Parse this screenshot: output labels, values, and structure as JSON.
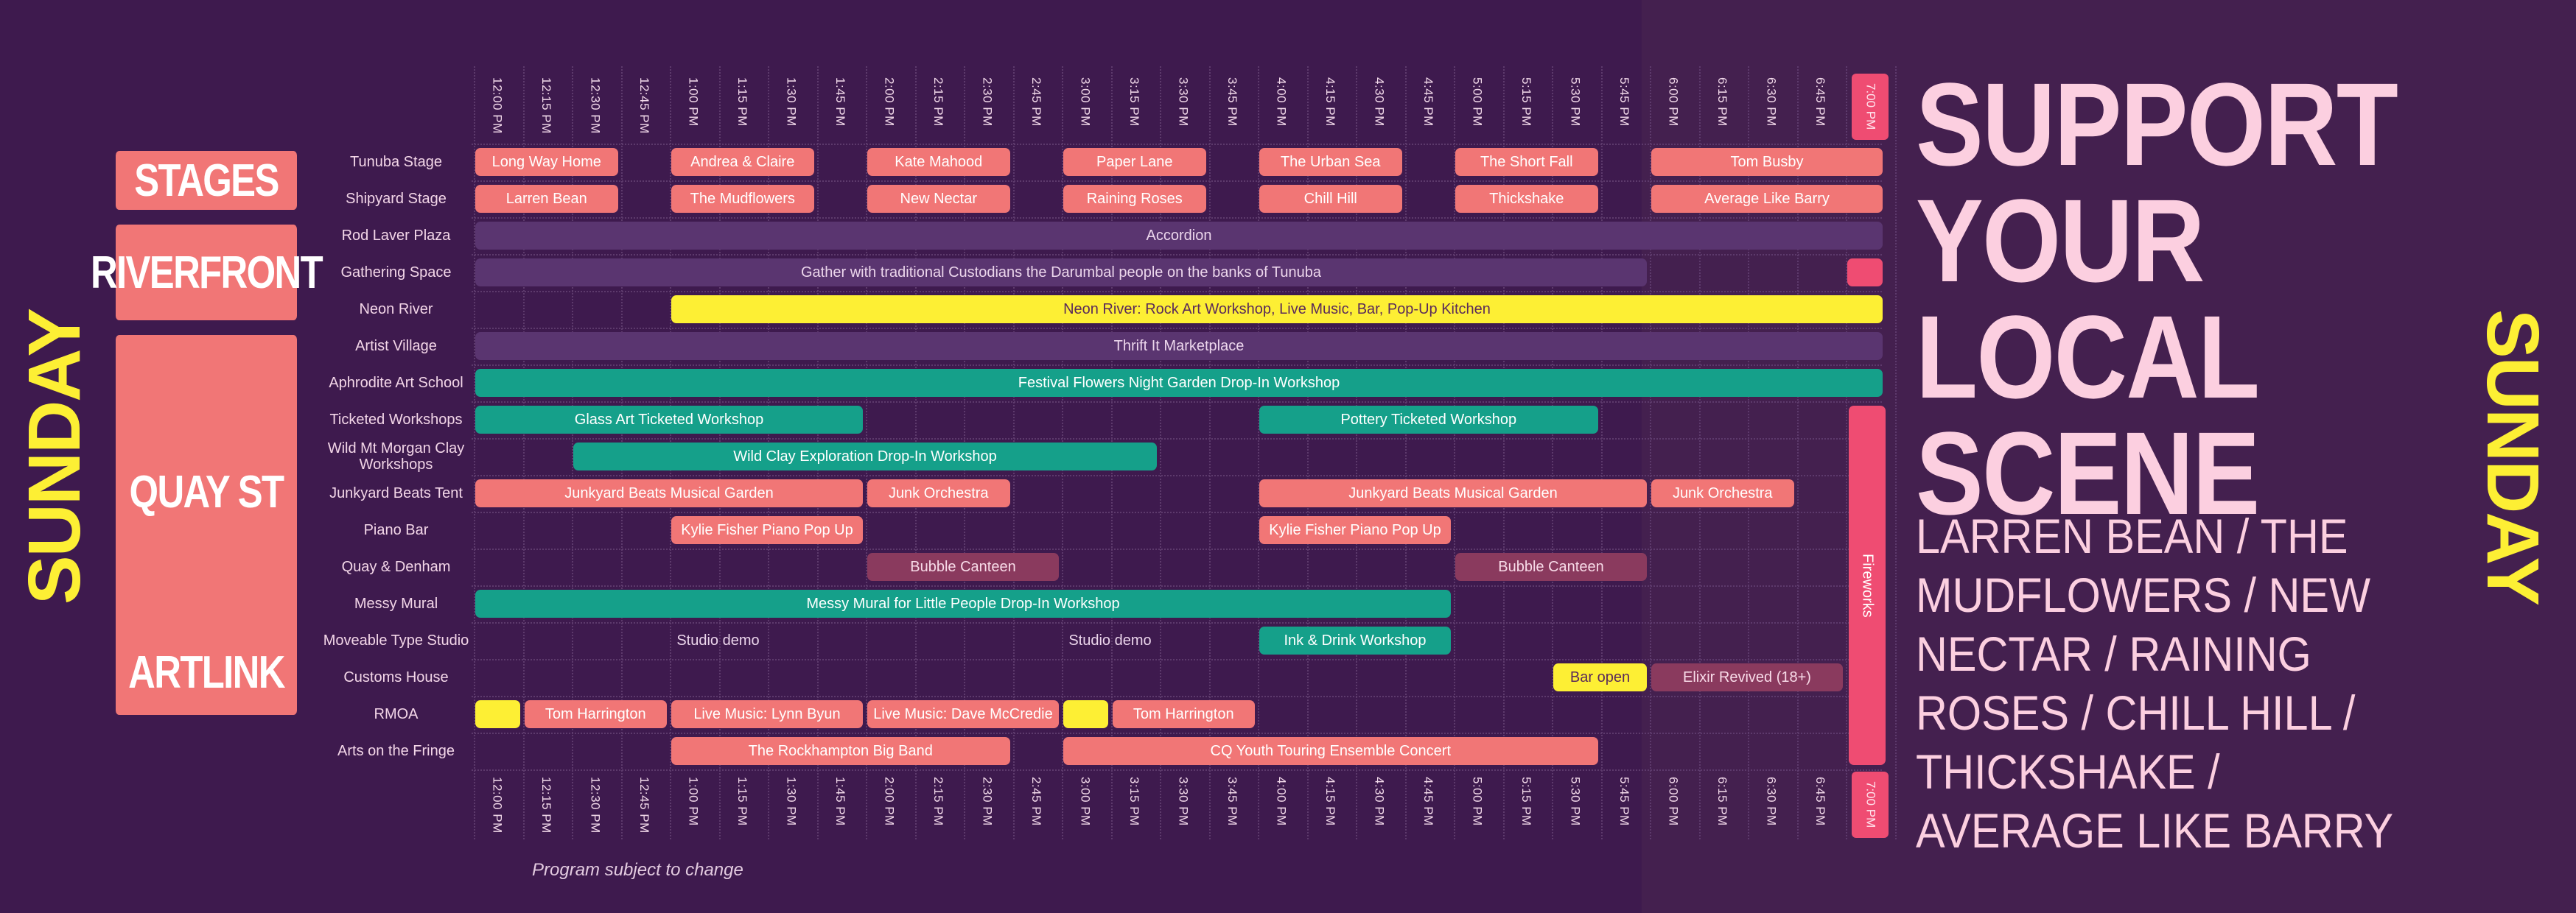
{
  "day": "SUNDAY",
  "headline": "SUPPORT YOUR LOCAL SCENE",
  "lineup": "LARREN BEAN / THE MUDFLOWERS / NEW NECTAR / RAINING ROSES / CHILL HILL / THICKSHAKE / AVERAGE LIKE BARRY",
  "note": "Program subject to change",
  "colors": {
    "background": "#3e1a4e",
    "salmon": "#f17676",
    "teal": "#15a08a",
    "yellow": "#fdef34",
    "pink": "#ef4c72",
    "purple": "#5a3570",
    "mauve": "#8a3a5e",
    "headline": "#fccfe0"
  },
  "times": [
    "12:00 PM",
    "12:15 PM",
    "12:30 PM",
    "12:45 PM",
    "1:00 PM",
    "1:15 PM",
    "1:30 PM",
    "1:45 PM",
    "2:00 PM",
    "2:15 PM",
    "2:30 PM",
    "2:45 PM",
    "3:00 PM",
    "3:15 PM",
    "3:30 PM",
    "3:45 PM",
    "4:00 PM",
    "4:15 PM",
    "4:30 PM",
    "4:45 PM",
    "5:00 PM",
    "5:15 PM",
    "5:30 PM",
    "5:45 PM",
    "6:00 PM",
    "6:15 PM",
    "6:30 PM",
    "6:45 PM",
    "7:00 PM"
  ],
  "categories": [
    {
      "name": "STAGES",
      "rows": [
        0,
        1
      ]
    },
    {
      "name": "RIVERFRONT",
      "rows": [
        2,
        4
      ]
    },
    {
      "name": "QUAY ST",
      "rows": [
        5,
        12
      ]
    },
    {
      "name": "ARTLINK",
      "rows": [
        13,
        14
      ]
    }
  ],
  "venues": [
    "Tunuba Stage",
    "Shipyard Stage",
    "Rod Laver Plaza",
    "Gathering Space",
    "Neon River",
    "Artist Village",
    "Aphrodite Art School",
    "Ticketed Workshops",
    "Wild Mt Morgan Clay Workshops",
    "Junkyard Beats Tent",
    "Piano Bar",
    "Quay & Denham",
    "Messy Mural",
    "Moveable Type Studio",
    "Customs House",
    "RMOA",
    "Arts on the Fringe"
  ],
  "events": [
    {
      "row": 0,
      "start": "12:00 PM",
      "end": "12:45 PM",
      "label": "Long Way Home",
      "style": "salmon"
    },
    {
      "row": 0,
      "start": "1:00 PM",
      "end": "1:45 PM",
      "label": "Andrea & Claire",
      "style": "salmon"
    },
    {
      "row": 0,
      "start": "2:00 PM",
      "end": "2:45 PM",
      "label": "Kate Mahood",
      "style": "salmon"
    },
    {
      "row": 0,
      "start": "3:00 PM",
      "end": "3:45 PM",
      "label": "Paper Lane",
      "style": "salmon"
    },
    {
      "row": 0,
      "start": "4:00 PM",
      "end": "4:45 PM",
      "label": "The Urban Sea",
      "style": "salmon"
    },
    {
      "row": 0,
      "start": "5:00 PM",
      "end": "5:45 PM",
      "label": "The Short Fall",
      "style": "salmon"
    },
    {
      "row": 0,
      "start": "6:00 PM",
      "end": "7:15 PM",
      "label": "Tom Busby",
      "style": "salmon"
    },
    {
      "row": 1,
      "start": "12:00 PM",
      "end": "12:45 PM",
      "label": "Larren Bean",
      "style": "salmon"
    },
    {
      "row": 1,
      "start": "1:00 PM",
      "end": "1:45 PM",
      "label": "The Mudflowers",
      "style": "salmon"
    },
    {
      "row": 1,
      "start": "2:00 PM",
      "end": "2:45 PM",
      "label": "New Nectar",
      "style": "salmon"
    },
    {
      "row": 1,
      "start": "3:00 PM",
      "end": "3:45 PM",
      "label": "Raining Roses",
      "style": "salmon"
    },
    {
      "row": 1,
      "start": "4:00 PM",
      "end": "4:45 PM",
      "label": "Chill Hill",
      "style": "salmon"
    },
    {
      "row": 1,
      "start": "5:00 PM",
      "end": "5:45 PM",
      "label": "Thickshake",
      "style": "salmon"
    },
    {
      "row": 1,
      "start": "6:00 PM",
      "end": "7:15 PM",
      "label": "Average Like Barry",
      "style": "salmon"
    },
    {
      "row": 2,
      "start": "12:00 PM",
      "end": "7:15 PM",
      "label": "Accordion",
      "style": "purple"
    },
    {
      "row": 3,
      "start": "12:00 PM",
      "end": "6:00 PM",
      "label": "Gather with traditional Custodians the Darumbal people on the banks of Tunuba",
      "style": "purple"
    },
    {
      "row": 3,
      "start": "7:00 PM",
      "end": "7:15 PM",
      "label": "",
      "style": "pink"
    },
    {
      "row": 4,
      "start": "1:00 PM",
      "end": "7:15 PM",
      "label": "Neon River: Rock Art Workshop, Live Music, Bar, Pop-Up Kitchen",
      "style": "yellow"
    },
    {
      "row": 5,
      "start": "12:00 PM",
      "end": "7:15 PM",
      "label": "Thrift It Marketplace",
      "style": "purple"
    },
    {
      "row": 6,
      "start": "12:00 PM",
      "end": "7:15 PM",
      "label": "Festival Flowers Night Garden Drop-In Workshop",
      "style": "teal"
    },
    {
      "row": 7,
      "start": "12:00 PM",
      "end": "2:00 PM",
      "label": "Glass Art Ticketed Workshop",
      "style": "teal"
    },
    {
      "row": 7,
      "start": "4:00 PM",
      "end": "5:45 PM",
      "label": "Pottery Ticketed Workshop",
      "style": "teal"
    },
    {
      "row": 8,
      "start": "12:30 PM",
      "end": "3:30 PM",
      "label": "Wild Clay Exploration Drop-In Workshop",
      "style": "teal"
    },
    {
      "row": 9,
      "start": "12:00 PM",
      "end": "2:00 PM",
      "label": "Junkyard Beats Musical Garden",
      "style": "salmon"
    },
    {
      "row": 9,
      "start": "2:00 PM",
      "end": "2:45 PM",
      "label": "Junk Orchestra",
      "style": "salmon"
    },
    {
      "row": 9,
      "start": "4:00 PM",
      "end": "6:00 PM",
      "label": "Junkyard Beats Musical Garden",
      "style": "salmon"
    },
    {
      "row": 9,
      "start": "6:00 PM",
      "end": "6:45 PM",
      "label": "Junk Orchestra",
      "style": "salmon"
    },
    {
      "row": 10,
      "start": "1:00 PM",
      "end": "2:00 PM",
      "label": "Kylie Fisher Piano Pop Up",
      "style": "salmon"
    },
    {
      "row": 10,
      "start": "4:00 PM",
      "end": "5:00 PM",
      "label": "Kylie Fisher Piano Pop Up",
      "style": "salmon"
    },
    {
      "row": 11,
      "start": "2:00 PM",
      "end": "3:00 PM",
      "label": "Bubble Canteen",
      "style": "mauve"
    },
    {
      "row": 11,
      "start": "5:00 PM",
      "end": "6:00 PM",
      "label": "Bubble Canteen",
      "style": "mauve"
    },
    {
      "row": 12,
      "start": "12:00 PM",
      "end": "5:00 PM",
      "label": "Messy Mural for Little People  Drop-In Workshop",
      "style": "teal"
    },
    {
      "row": 13,
      "start": "1:00 PM",
      "end": "1:30 PM",
      "label": "Studio demo",
      "style": "plain"
    },
    {
      "row": 13,
      "start": "3:00 PM",
      "end": "3:30 PM",
      "label": "Studio demo",
      "style": "plain"
    },
    {
      "row": 13,
      "start": "4:00 PM",
      "end": "5:00 PM",
      "label": "Ink & Drink Workshop",
      "style": "teal"
    },
    {
      "row": 14,
      "start": "5:30 PM",
      "end": "6:00 PM",
      "label": "Bar open",
      "style": "yellow"
    },
    {
      "row": 14,
      "start": "6:00 PM",
      "end": "7:00 PM",
      "label": "Elixir Revived (18+)",
      "style": "mauve"
    },
    {
      "row": 15,
      "start": "12:00 PM",
      "end": "12:15 PM",
      "label": "",
      "style": "yellow"
    },
    {
      "row": 15,
      "start": "12:15 PM",
      "end": "1:00 PM",
      "label": "Tom Harrington",
      "style": "salmon"
    },
    {
      "row": 15,
      "start": "1:00 PM",
      "end": "2:00 PM",
      "label": "Live Music: Lynn Byun",
      "style": "salmon"
    },
    {
      "row": 15,
      "start": "2:00 PM",
      "end": "3:00 PM",
      "label": "Live Music: Dave McCredie",
      "style": "salmon"
    },
    {
      "row": 15,
      "start": "3:00 PM",
      "end": "3:15 PM",
      "label": "",
      "style": "yellow"
    },
    {
      "row": 15,
      "start": "3:15 PM",
      "end": "4:00 PM",
      "label": "Tom Harrington",
      "style": "salmon"
    },
    {
      "row": 16,
      "start": "1:00 PM",
      "end": "2:45 PM",
      "label": "The Rockhampton Big Band",
      "style": "salmon"
    },
    {
      "row": 16,
      "start": "3:00 PM",
      "end": "5:45 PM",
      "label": "CQ Youth Touring Ensemble Concert",
      "style": "salmon"
    }
  ],
  "fireworks": {
    "label": "Fireworks",
    "start": "7:00 PM",
    "end": "7:15 PM",
    "row_start": 7,
    "row_end": 16,
    "style": "pink"
  }
}
